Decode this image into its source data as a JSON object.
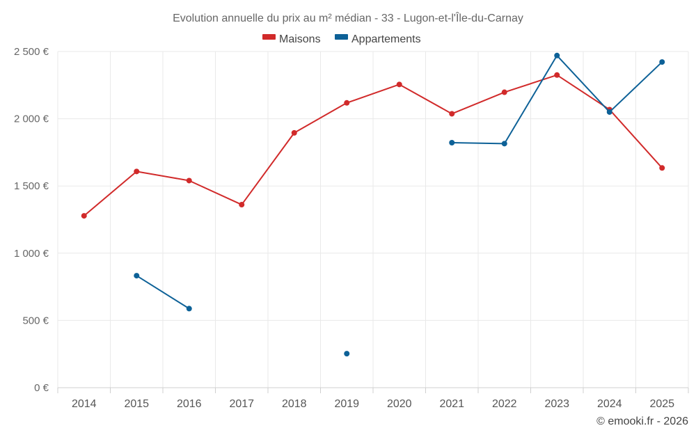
{
  "chart_data": {
    "type": "line",
    "title": "Evolution annuelle du prix au m² médian - 33 - Lugon-et-l'Île-du-Carnay",
    "categories": [
      "2014",
      "2015",
      "2016",
      "2017",
      "2018",
      "2019",
      "2020",
      "2021",
      "2022",
      "2023",
      "2024",
      "2025"
    ],
    "y_ticks": [
      "0 €",
      "500 €",
      "1 000 €",
      "1 500 €",
      "2 000 €",
      "2 500 €"
    ],
    "ylim": [
      0,
      2500
    ],
    "legend_position": "top-center",
    "series": [
      {
        "name": "Maisons",
        "color": "#d12a2a",
        "values": [
          1278,
          1608,
          1540,
          1361,
          1895,
          2118,
          2255,
          2037,
          2197,
          2325,
          2068,
          1634
        ]
      },
      {
        "name": "Appartements",
        "color": "#0d6197",
        "values": [
          null,
          833,
          588,
          null,
          null,
          253,
          null,
          1822,
          1815,
          2470,
          2050,
          2422
        ]
      }
    ],
    "credit": "© emooki.fr - 2026"
  }
}
